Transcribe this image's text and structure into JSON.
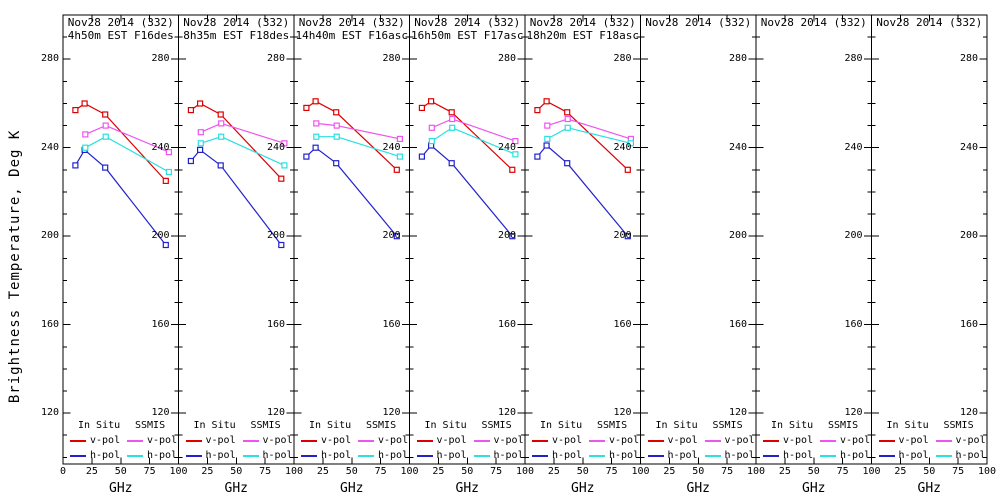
{
  "figure": {
    "ylabel": "Brightness Temperature, Deg K",
    "xlabel": "GHz",
    "background": "#ffffff",
    "axis_color": "#000000"
  },
  "legend": {
    "col1_header": "In Situ",
    "col2_header": "SSMIS",
    "col1_rows": [
      "v-pol",
      "h-pol"
    ],
    "col2_rows": [
      "v-pol",
      "h-pol"
    ]
  },
  "colors": {
    "in_situ_v_pol": "#dd0000",
    "in_situ_h_pol": "#2222cc",
    "ssmis_v_pol": "#ee55ee",
    "ssmis_h_pol": "#2ae0e0"
  },
  "axes": {
    "xlim": [
      0,
      100
    ],
    "xticks": [
      0,
      25,
      50,
      75,
      100
    ],
    "ylim": [
      97,
      300
    ],
    "yticks": [
      280,
      240,
      200,
      160,
      120
    ],
    "y_minor_step": 10,
    "grid": false
  },
  "chart_data": [
    {
      "type": "line",
      "title_line1": "Nov28 2014 (332)",
      "title_line2": "4h50m EST F16des",
      "series": [
        {
          "name": "in-situ-v-pol",
          "legend": "v-pol",
          "group": "In Situ",
          "color": "#dd0000",
          "x": [
            10.7,
            18.7,
            36.5,
            89
          ],
          "y": [
            257,
            260,
            255,
            225
          ]
        },
        {
          "name": "in-situ-h-pol",
          "legend": "h-pol",
          "group": "In Situ",
          "color": "#2222cc",
          "x": [
            10.7,
            18.7,
            36.5,
            89
          ],
          "y": [
            232,
            239,
            231,
            196
          ]
        },
        {
          "name": "ssmis-v-pol",
          "legend": "v-pol",
          "group": "SSMIS",
          "color": "#ee55ee",
          "x": [
            19.35,
            37,
            91.655
          ],
          "y": [
            246,
            250,
            238
          ]
        },
        {
          "name": "ssmis-h-pol",
          "legend": "h-pol",
          "group": "SSMIS",
          "color": "#2ae0e0",
          "x": [
            19.35,
            37,
            91.655
          ],
          "y": [
            240,
            245,
            229
          ]
        }
      ]
    },
    {
      "type": "line",
      "title_line1": "Nov28 2014 (332)",
      "title_line2": "8h35m EST F18des",
      "series": [
        {
          "name": "in-situ-v-pol",
          "legend": "v-pol",
          "group": "In Situ",
          "color": "#dd0000",
          "x": [
            10.7,
            18.7,
            36.5,
            89
          ],
          "y": [
            257,
            260,
            255,
            226
          ]
        },
        {
          "name": "in-situ-h-pol",
          "legend": "h-pol",
          "group": "In Situ",
          "color": "#2222cc",
          "x": [
            10.7,
            18.7,
            36.5,
            89
          ],
          "y": [
            234,
            239,
            232,
            196
          ]
        },
        {
          "name": "ssmis-v-pol",
          "legend": "v-pol",
          "group": "SSMIS",
          "color": "#ee55ee",
          "x": [
            19.35,
            37,
            91.655
          ],
          "y": [
            247,
            251,
            242
          ]
        },
        {
          "name": "ssmis-h-pol",
          "legend": "h-pol",
          "group": "SSMIS",
          "color": "#2ae0e0",
          "x": [
            19.35,
            37,
            91.655
          ],
          "y": [
            242,
            245,
            232
          ]
        }
      ]
    },
    {
      "type": "line",
      "title_line1": "Nov28 2014 (332)",
      "title_line2": "14h40m EST F16asc",
      "series": [
        {
          "name": "in-situ-v-pol",
          "legend": "v-pol",
          "group": "In Situ",
          "color": "#dd0000",
          "x": [
            10.7,
            18.7,
            36.5,
            89
          ],
          "y": [
            258,
            261,
            256,
            230
          ]
        },
        {
          "name": "in-situ-h-pol",
          "legend": "h-pol",
          "group": "In Situ",
          "color": "#2222cc",
          "x": [
            10.7,
            18.7,
            36.5,
            89
          ],
          "y": [
            236,
            240,
            233,
            200
          ]
        },
        {
          "name": "ssmis-v-pol",
          "legend": "v-pol",
          "group": "SSMIS",
          "color": "#ee55ee",
          "x": [
            19.35,
            37,
            91.655
          ],
          "y": [
            251,
            250,
            244
          ]
        },
        {
          "name": "ssmis-h-pol",
          "legend": "h-pol",
          "group": "SSMIS",
          "color": "#2ae0e0",
          "x": [
            19.35,
            37,
            91.655
          ],
          "y": [
            245,
            245,
            236
          ]
        }
      ]
    },
    {
      "type": "line",
      "title_line1": "Nov28 2014 (332)",
      "title_line2": "16h50m EST F17asc",
      "series": [
        {
          "name": "in-situ-v-pol",
          "legend": "v-pol",
          "group": "In Situ",
          "color": "#dd0000",
          "x": [
            10.7,
            18.7,
            36.5,
            89
          ],
          "y": [
            258,
            261,
            256,
            230
          ]
        },
        {
          "name": "in-situ-h-pol",
          "legend": "h-pol",
          "group": "In Situ",
          "color": "#2222cc",
          "x": [
            10.7,
            18.7,
            36.5,
            89
          ],
          "y": [
            236,
            241,
            233,
            200
          ]
        },
        {
          "name": "ssmis-v-pol",
          "legend": "v-pol",
          "group": "SSMIS",
          "color": "#ee55ee",
          "x": [
            19.35,
            37,
            91.655
          ],
          "y": [
            249,
            253,
            243
          ]
        },
        {
          "name": "ssmis-h-pol",
          "legend": "h-pol",
          "group": "SSMIS",
          "color": "#2ae0e0",
          "x": [
            19.35,
            37,
            91.655
          ],
          "y": [
            243,
            249,
            237
          ]
        }
      ]
    },
    {
      "type": "line",
      "title_line1": "Nov28 2014 (332)",
      "title_line2": "18h20m EST F18asc",
      "series": [
        {
          "name": "in-situ-v-pol",
          "legend": "v-pol",
          "group": "In Situ",
          "color": "#dd0000",
          "x": [
            10.7,
            18.7,
            36.5,
            89
          ],
          "y": [
            257,
            261,
            256,
            230
          ]
        },
        {
          "name": "in-situ-h-pol",
          "legend": "h-pol",
          "group": "In Situ",
          "color": "#2222cc",
          "x": [
            10.7,
            18.7,
            36.5,
            89
          ],
          "y": [
            236,
            241,
            233,
            200
          ]
        },
        {
          "name": "ssmis-v-pol",
          "legend": "v-pol",
          "group": "SSMIS",
          "color": "#ee55ee",
          "x": [
            19.35,
            37,
            91.655
          ],
          "y": [
            250,
            253,
            244
          ]
        },
        {
          "name": "ssmis-h-pol",
          "legend": "h-pol",
          "group": "SSMIS",
          "color": "#2ae0e0",
          "x": [
            19.35,
            37,
            91.655
          ],
          "y": [
            244,
            249,
            242
          ]
        }
      ]
    },
    {
      "type": "line",
      "title_line1": "Nov28 2014 (332)",
      "title_line2": "",
      "series": []
    },
    {
      "type": "line",
      "title_line1": "Nov28 2014 (332)",
      "title_line2": "",
      "series": []
    },
    {
      "type": "line",
      "title_line1": "Nov28 2014 (332)",
      "title_line2": "",
      "series": []
    }
  ]
}
